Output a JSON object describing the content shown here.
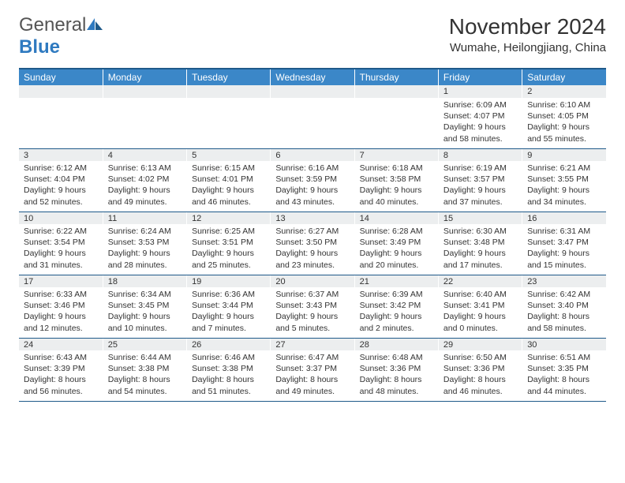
{
  "brand": {
    "name_a": "General",
    "name_b": "Blue"
  },
  "title": "November 2024",
  "location": "Wumahe, Heilongjiang, China",
  "colors": {
    "header_bg": "#3b87c8",
    "header_text": "#ffffff",
    "daynum_bg": "#eceeef",
    "rule": "#1f5a8a",
    "logo_blue": "#2f7ac0",
    "text": "#333333",
    "background": "#ffffff"
  },
  "typography": {
    "title_fontsize": 28,
    "location_fontsize": 15,
    "dayheader_fontsize": 12,
    "cell_fontsize": 10.5,
    "daynum_fontsize": 11
  },
  "day_headers": [
    "Sunday",
    "Monday",
    "Tuesday",
    "Wednesday",
    "Thursday",
    "Friday",
    "Saturday"
  ],
  "weeks": [
    [
      {
        "n": "",
        "sr": "",
        "ss": "",
        "dl": ""
      },
      {
        "n": "",
        "sr": "",
        "ss": "",
        "dl": ""
      },
      {
        "n": "",
        "sr": "",
        "ss": "",
        "dl": ""
      },
      {
        "n": "",
        "sr": "",
        "ss": "",
        "dl": ""
      },
      {
        "n": "",
        "sr": "",
        "ss": "",
        "dl": ""
      },
      {
        "n": "1",
        "sr": "Sunrise: 6:09 AM",
        "ss": "Sunset: 4:07 PM",
        "dl": "Daylight: 9 hours and 58 minutes."
      },
      {
        "n": "2",
        "sr": "Sunrise: 6:10 AM",
        "ss": "Sunset: 4:05 PM",
        "dl": "Daylight: 9 hours and 55 minutes."
      }
    ],
    [
      {
        "n": "3",
        "sr": "Sunrise: 6:12 AM",
        "ss": "Sunset: 4:04 PM",
        "dl": "Daylight: 9 hours and 52 minutes."
      },
      {
        "n": "4",
        "sr": "Sunrise: 6:13 AM",
        "ss": "Sunset: 4:02 PM",
        "dl": "Daylight: 9 hours and 49 minutes."
      },
      {
        "n": "5",
        "sr": "Sunrise: 6:15 AM",
        "ss": "Sunset: 4:01 PM",
        "dl": "Daylight: 9 hours and 46 minutes."
      },
      {
        "n": "6",
        "sr": "Sunrise: 6:16 AM",
        "ss": "Sunset: 3:59 PM",
        "dl": "Daylight: 9 hours and 43 minutes."
      },
      {
        "n": "7",
        "sr": "Sunrise: 6:18 AM",
        "ss": "Sunset: 3:58 PM",
        "dl": "Daylight: 9 hours and 40 minutes."
      },
      {
        "n": "8",
        "sr": "Sunrise: 6:19 AM",
        "ss": "Sunset: 3:57 PM",
        "dl": "Daylight: 9 hours and 37 minutes."
      },
      {
        "n": "9",
        "sr": "Sunrise: 6:21 AM",
        "ss": "Sunset: 3:55 PM",
        "dl": "Daylight: 9 hours and 34 minutes."
      }
    ],
    [
      {
        "n": "10",
        "sr": "Sunrise: 6:22 AM",
        "ss": "Sunset: 3:54 PM",
        "dl": "Daylight: 9 hours and 31 minutes."
      },
      {
        "n": "11",
        "sr": "Sunrise: 6:24 AM",
        "ss": "Sunset: 3:53 PM",
        "dl": "Daylight: 9 hours and 28 minutes."
      },
      {
        "n": "12",
        "sr": "Sunrise: 6:25 AM",
        "ss": "Sunset: 3:51 PM",
        "dl": "Daylight: 9 hours and 25 minutes."
      },
      {
        "n": "13",
        "sr": "Sunrise: 6:27 AM",
        "ss": "Sunset: 3:50 PM",
        "dl": "Daylight: 9 hours and 23 minutes."
      },
      {
        "n": "14",
        "sr": "Sunrise: 6:28 AM",
        "ss": "Sunset: 3:49 PM",
        "dl": "Daylight: 9 hours and 20 minutes."
      },
      {
        "n": "15",
        "sr": "Sunrise: 6:30 AM",
        "ss": "Sunset: 3:48 PM",
        "dl": "Daylight: 9 hours and 17 minutes."
      },
      {
        "n": "16",
        "sr": "Sunrise: 6:31 AM",
        "ss": "Sunset: 3:47 PM",
        "dl": "Daylight: 9 hours and 15 minutes."
      }
    ],
    [
      {
        "n": "17",
        "sr": "Sunrise: 6:33 AM",
        "ss": "Sunset: 3:46 PM",
        "dl": "Daylight: 9 hours and 12 minutes."
      },
      {
        "n": "18",
        "sr": "Sunrise: 6:34 AM",
        "ss": "Sunset: 3:45 PM",
        "dl": "Daylight: 9 hours and 10 minutes."
      },
      {
        "n": "19",
        "sr": "Sunrise: 6:36 AM",
        "ss": "Sunset: 3:44 PM",
        "dl": "Daylight: 9 hours and 7 minutes."
      },
      {
        "n": "20",
        "sr": "Sunrise: 6:37 AM",
        "ss": "Sunset: 3:43 PM",
        "dl": "Daylight: 9 hours and 5 minutes."
      },
      {
        "n": "21",
        "sr": "Sunrise: 6:39 AM",
        "ss": "Sunset: 3:42 PM",
        "dl": "Daylight: 9 hours and 2 minutes."
      },
      {
        "n": "22",
        "sr": "Sunrise: 6:40 AM",
        "ss": "Sunset: 3:41 PM",
        "dl": "Daylight: 9 hours and 0 minutes."
      },
      {
        "n": "23",
        "sr": "Sunrise: 6:42 AM",
        "ss": "Sunset: 3:40 PM",
        "dl": "Daylight: 8 hours and 58 minutes."
      }
    ],
    [
      {
        "n": "24",
        "sr": "Sunrise: 6:43 AM",
        "ss": "Sunset: 3:39 PM",
        "dl": "Daylight: 8 hours and 56 minutes."
      },
      {
        "n": "25",
        "sr": "Sunrise: 6:44 AM",
        "ss": "Sunset: 3:38 PM",
        "dl": "Daylight: 8 hours and 54 minutes."
      },
      {
        "n": "26",
        "sr": "Sunrise: 6:46 AM",
        "ss": "Sunset: 3:38 PM",
        "dl": "Daylight: 8 hours and 51 minutes."
      },
      {
        "n": "27",
        "sr": "Sunrise: 6:47 AM",
        "ss": "Sunset: 3:37 PM",
        "dl": "Daylight: 8 hours and 49 minutes."
      },
      {
        "n": "28",
        "sr": "Sunrise: 6:48 AM",
        "ss": "Sunset: 3:36 PM",
        "dl": "Daylight: 8 hours and 48 minutes."
      },
      {
        "n": "29",
        "sr": "Sunrise: 6:50 AM",
        "ss": "Sunset: 3:36 PM",
        "dl": "Daylight: 8 hours and 46 minutes."
      },
      {
        "n": "30",
        "sr": "Sunrise: 6:51 AM",
        "ss": "Sunset: 3:35 PM",
        "dl": "Daylight: 8 hours and 44 minutes."
      }
    ]
  ]
}
